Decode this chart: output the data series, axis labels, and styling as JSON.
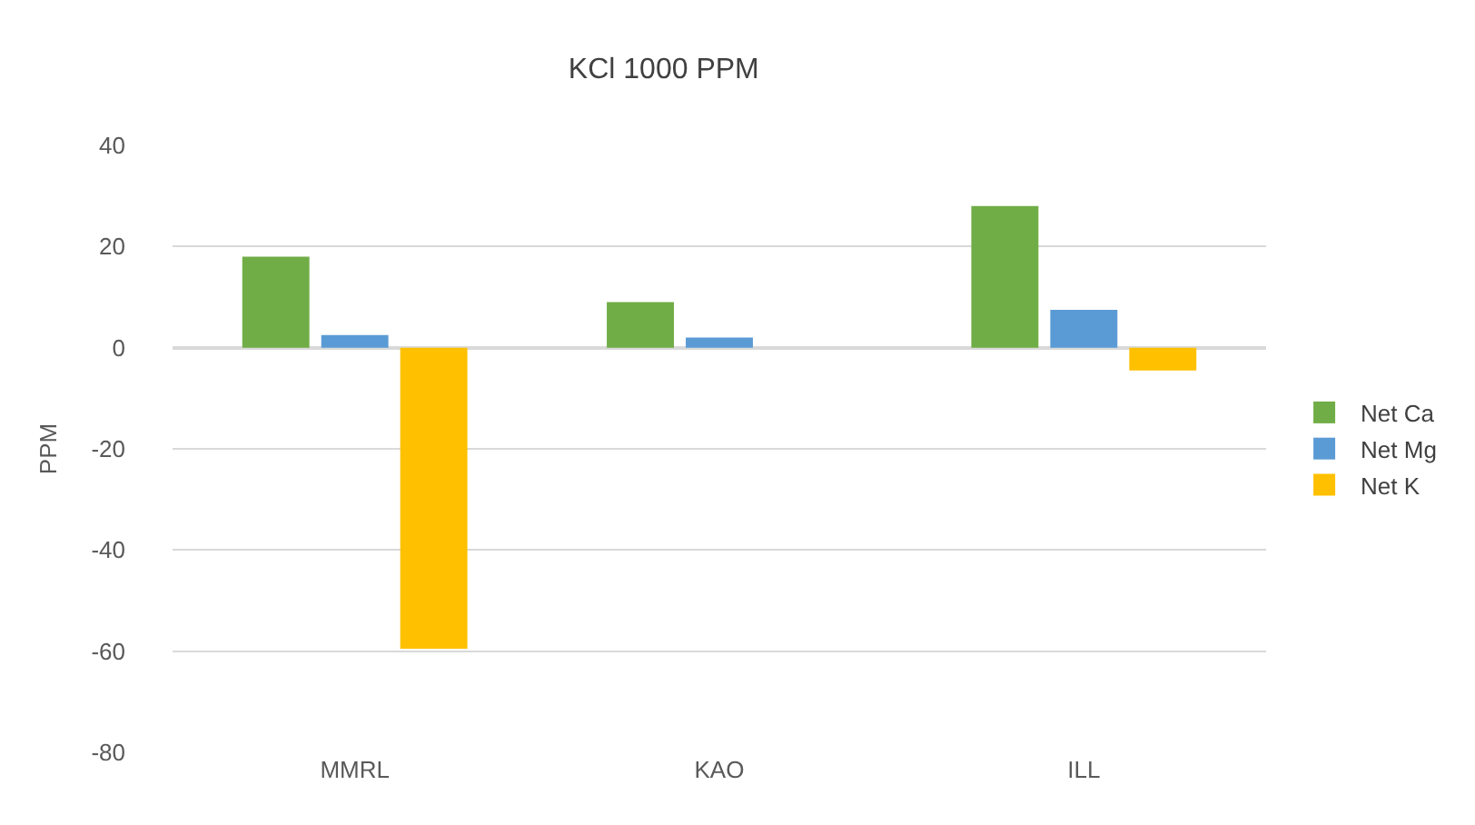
{
  "chart_data": {
    "type": "bar",
    "title": "KCl 1000 PPM",
    "ylabel": "PPM",
    "categories": [
      "MMRL",
      "KAO",
      "ILL"
    ],
    "series": [
      {
        "name": "Net Ca",
        "color": "#70ad47",
        "values": [
          18,
          9,
          28
        ]
      },
      {
        "name": "Net Mg",
        "color": "#5b9bd5",
        "values": [
          2.5,
          2,
          7.5
        ]
      },
      {
        "name": "Net K",
        "color": "#ffc000",
        "values": [
          -59.5,
          0,
          -4.5
        ]
      }
    ],
    "ylim": [
      -80,
      40
    ],
    "yticks": [
      -80,
      -60,
      -40,
      -20,
      0,
      20,
      40
    ],
    "grid": "y",
    "legend": "right"
  }
}
